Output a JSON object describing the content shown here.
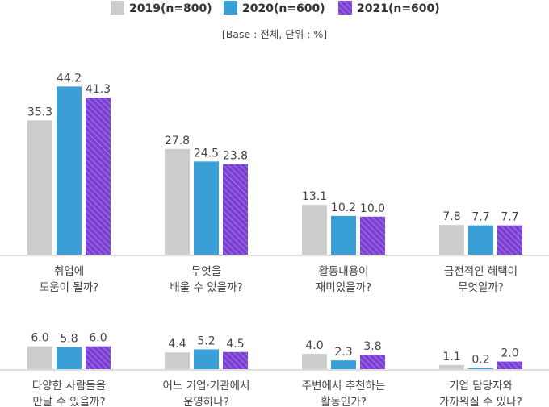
{
  "chart_data": {
    "type": "bar",
    "note": "[Base : 전체, 단위 : %]",
    "legend_position": "top",
    "series": [
      {
        "name": "2019(n=800)",
        "color": "#cccccc",
        "pattern": "solid"
      },
      {
        "name": "2020(n=600)",
        "color": "#3a9fd6",
        "pattern": "solid"
      },
      {
        "name": "2021(n=600)",
        "color": "#7b3fd4",
        "pattern": "hatched"
      }
    ],
    "panels": [
      {
        "ylim": [
          0,
          50
        ],
        "categories": [
          {
            "label": [
              "취업에",
              "도움이 될까?"
            ],
            "values": [
              35.3,
              44.2,
              41.3
            ]
          },
          {
            "label": [
              "무엇을",
              "배울 수 있을까?"
            ],
            "values": [
              27.8,
              24.5,
              23.8
            ]
          },
          {
            "label": [
              "활동내용이",
              "재미있을까?"
            ],
            "values": [
              13.1,
              10.2,
              10.0
            ]
          },
          {
            "label": [
              "금전적인 혜택이",
              "무엇일까?"
            ],
            "values": [
              7.8,
              7.7,
              7.7
            ]
          }
        ]
      },
      {
        "ylim": [
          0,
          50
        ],
        "categories": [
          {
            "label": [
              "다양한 사람들을",
              "만날 수 있을까?"
            ],
            "values": [
              6.0,
              5.8,
              6.0
            ]
          },
          {
            "label": [
              "어느 기업·기관에서",
              "운영하나?"
            ],
            "values": [
              4.4,
              5.2,
              4.5
            ]
          },
          {
            "label": [
              "주변에서 추천하는",
              "활동인가?"
            ],
            "values": [
              4.0,
              2.3,
              3.8
            ]
          },
          {
            "label": [
              "기업 담당자와",
              "가까워질 수 있나?"
            ],
            "values": [
              1.1,
              0.2,
              2.0
            ]
          }
        ]
      }
    ]
  }
}
